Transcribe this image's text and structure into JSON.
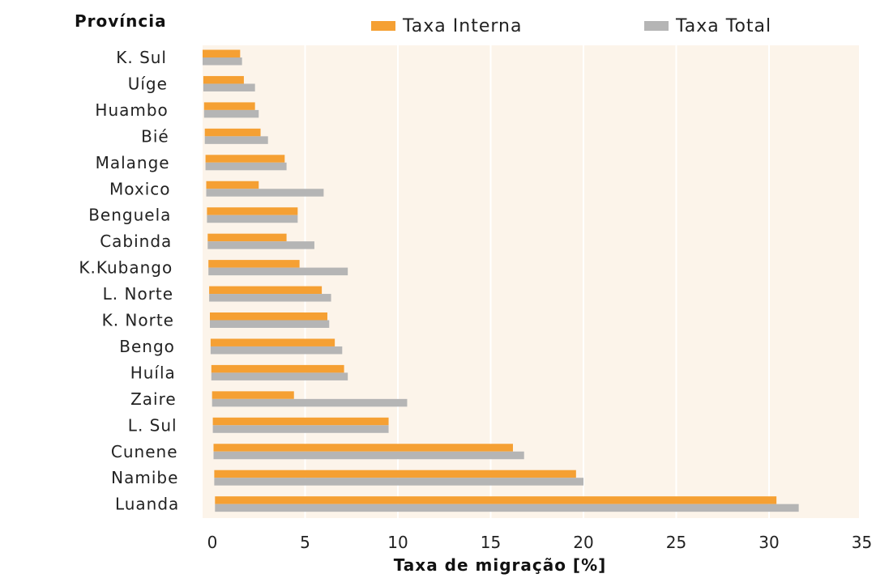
{
  "chart_data": {
    "type": "bar",
    "orientation": "horizontal",
    "title": "",
    "category_axis_title": "Província",
    "xlabel": "Taxa de migração [%]",
    "categories": [
      "K. Sul",
      "Uíge",
      "Huambo",
      "Bié",
      "Malange",
      "Moxico",
      "Benguela",
      "Cabinda",
      "K.Kubango",
      "L. Norte",
      "K. Norte",
      "Bengo",
      "Huíla",
      "Zaire",
      "L. Sul",
      "Cunene",
      "Namibe",
      "Luanda"
    ],
    "series": [
      {
        "name": "Taxa Interna",
        "color": "#F5A033",
        "values": [
          1.5,
          1.7,
          2.3,
          2.6,
          3.9,
          2.5,
          4.6,
          4.0,
          4.7,
          5.9,
          6.2,
          6.6,
          7.1,
          4.4,
          9.5,
          16.2,
          19.6,
          30.4
        ]
      },
      {
        "name": "Taxa Total",
        "color": "#B5B5B5",
        "values": [
          1.6,
          2.3,
          2.5,
          3.0,
          4.0,
          6.0,
          4.6,
          5.5,
          7.3,
          6.4,
          6.3,
          7.0,
          7.3,
          10.5,
          9.5,
          16.8,
          20.0,
          31.6
        ]
      }
    ],
    "xlim": [
      0,
      35
    ],
    "xticks": [
      0,
      5,
      10,
      15,
      20,
      25,
      30,
      35
    ],
    "grid": "vertical",
    "legend": "top"
  }
}
